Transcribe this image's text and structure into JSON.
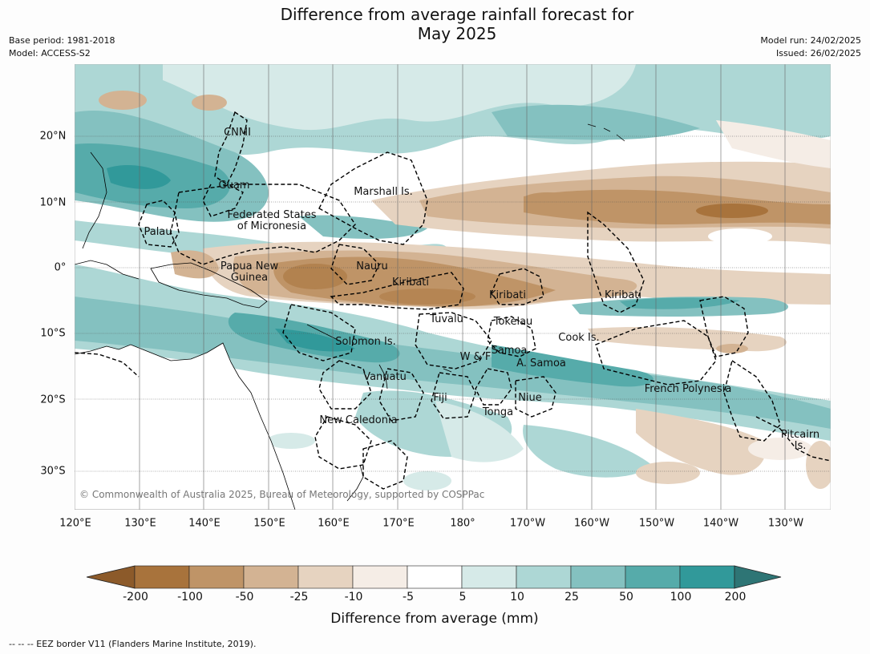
{
  "title": "Difference from average rainfall forecast for\nMay 2025",
  "title_line1": "Difference from average rainfall forecast for",
  "title_line2": "May 2025",
  "meta_left": [
    "Base period: 1981-2018",
    "Model: ACCESS-S2"
  ],
  "meta_right": [
    "Model run: 24/02/2025",
    "Issued: 26/02/2025"
  ],
  "lon_ticks": [
    "120°E",
    "130°E",
    "140°E",
    "150°E",
    "160°E",
    "170°E",
    "180°",
    "170°W",
    "160°W",
    "150°W",
    "140°W",
    "130°W"
  ],
  "lat_ticks": [
    "20°N",
    "10°N",
    "0°",
    "10°S",
    "20°S",
    "30°S"
  ],
  "regions": [
    {
      "name": "CNMI"
    },
    {
      "name": "Guam"
    },
    {
      "name": "Marshall Is."
    },
    {
      "name": "Federated States\nof Micronesia"
    },
    {
      "name": "Palau"
    },
    {
      "name": "Papua New\nGuinea"
    },
    {
      "name": "Nauru"
    },
    {
      "name": "Kiribati"
    },
    {
      "name": "Kiribati"
    },
    {
      "name": "Kiribati"
    },
    {
      "name": "Tuvalu"
    },
    {
      "name": "Tokelau"
    },
    {
      "name": "Cook Is."
    },
    {
      "name": "Solomon Is."
    },
    {
      "name": "W & F"
    },
    {
      "name": "Samoa"
    },
    {
      "name": "A. Samoa"
    },
    {
      "name": "Vanuatu"
    },
    {
      "name": "Fiji"
    },
    {
      "name": "Niue"
    },
    {
      "name": "Tonga"
    },
    {
      "name": "French Polynesia"
    },
    {
      "name": "New Caledonia"
    },
    {
      "name": "Pitcairn\nIs."
    }
  ],
  "copyright": "© Commonwealth of Australia 2025, Bureau of Meteorology, supported by COSPPac",
  "colorbar": {
    "title": "Difference from average (mm)",
    "ticks": [
      "-200",
      "-100",
      "-50",
      "-25",
      "-10",
      "-5",
      "5",
      "10",
      "25",
      "50",
      "100",
      "200"
    ],
    "colors": [
      "#8c5a2a",
      "#a8733c",
      "#bf9467",
      "#d3b393",
      "#e6d3c0",
      "#f5ede6",
      "#ffffff",
      "#d6eae8",
      "#add7d5",
      "#84c1c0",
      "#56abaa",
      "#31999a",
      "#2e7575"
    ]
  },
  "footnote": "--  --  -- EEZ border V11 (Flanders Marine Institute, 2019)."
}
